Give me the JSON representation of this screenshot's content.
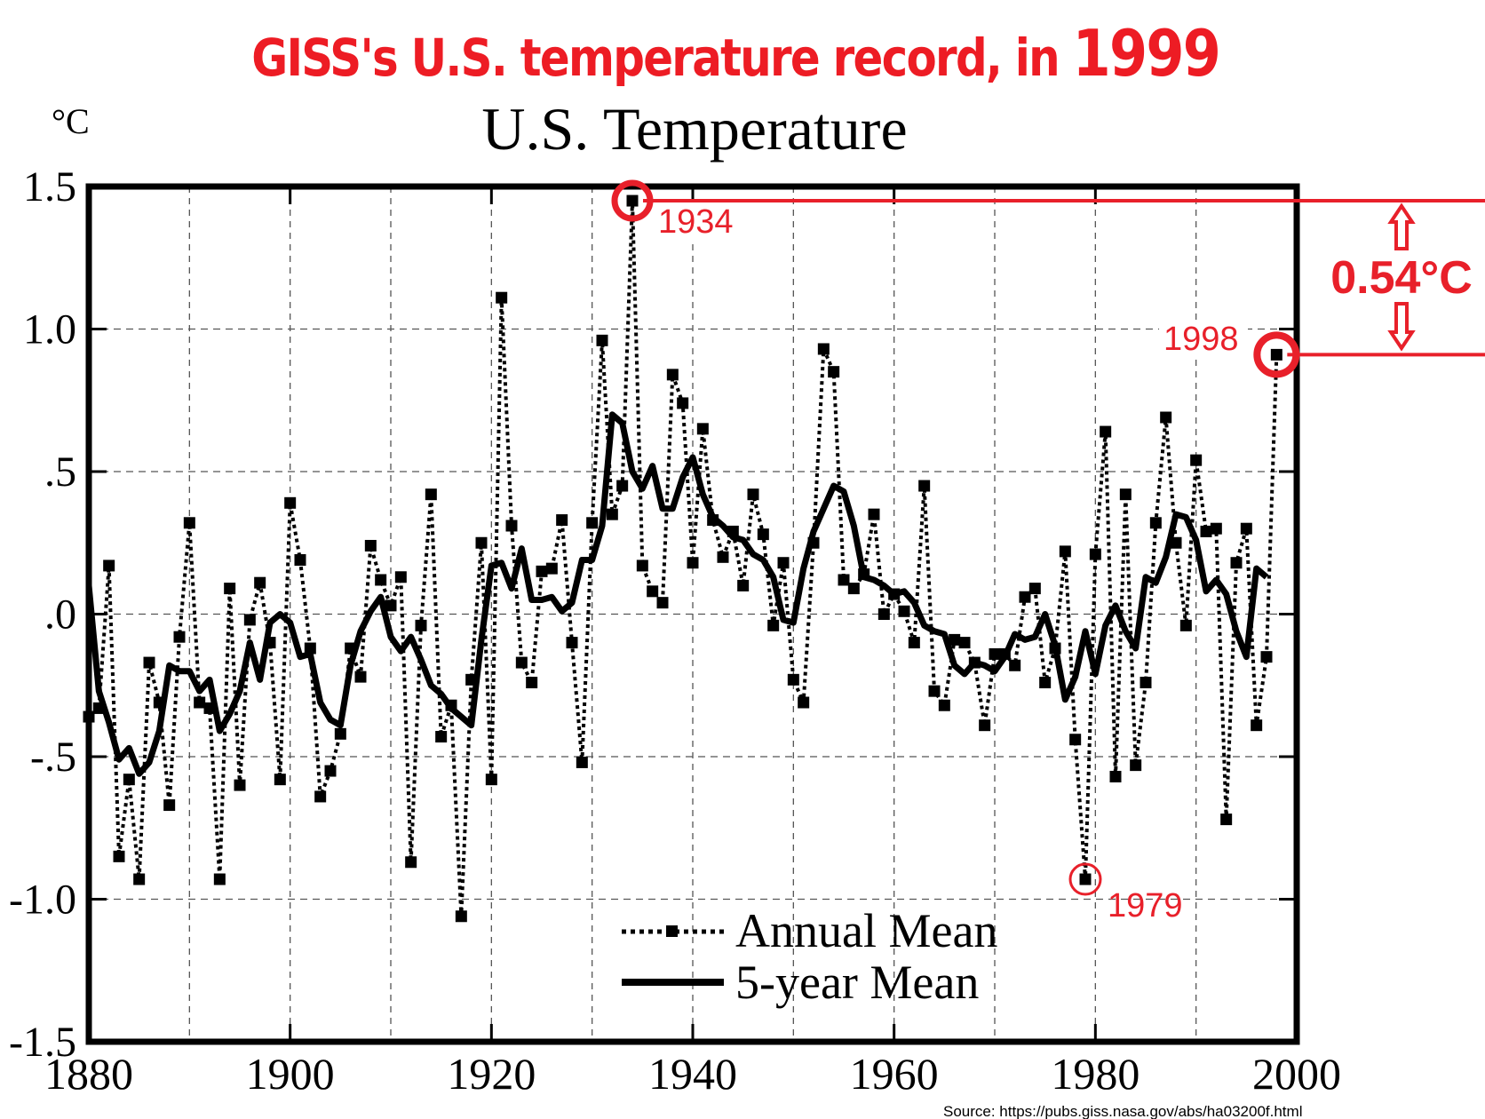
{
  "headline": {
    "text": "GISS's U.S. temperature record, in ",
    "year": "1999"
  },
  "annotations": {
    "peak_label": "1934",
    "recent_label": "1998",
    "low_label": "1979",
    "difference_label": "0.54°C",
    "source": "Source: https://pubs.giss.nasa.gov/abs/ha03200f.html",
    "annotation_color": "#e8202a"
  },
  "chart_data": {
    "type": "line",
    "title": "U.S. Temperature",
    "ylabel": "°C",
    "xlabel": "",
    "xlim": [
      1880,
      2000
    ],
    "ylim": [
      -1.5,
      1.5
    ],
    "xticks": [
      1880,
      1900,
      1920,
      1940,
      1960,
      1980,
      2000
    ],
    "xtick_labels": [
      "1880",
      "1900",
      "1920",
      "1940",
      "1960",
      "1980",
      "2000"
    ],
    "yticks": [
      1.5,
      1.0,
      0.5,
      0.0,
      -0.5,
      -1.0,
      -1.5
    ],
    "ytick_labels": [
      "1.5",
      "1.0",
      ".5",
      ".0",
      "-.5",
      "-1.0",
      "-1.5"
    ],
    "grid": true,
    "legend_position": "bottom-center",
    "series": [
      {
        "name": "Annual Mean",
        "style": "dotted-with-square-markers",
        "x_start": 1880,
        "values": [
          -0.36,
          -0.33,
          0.17,
          -0.85,
          -0.58,
          -0.93,
          -0.17,
          -0.31,
          -0.67,
          -0.08,
          0.32,
          -0.31,
          -0.33,
          -0.93,
          0.09,
          -0.6,
          -0.02,
          0.11,
          -0.1,
          -0.58,
          0.39,
          0.19,
          -0.12,
          -0.64,
          -0.55,
          -0.42,
          -0.12,
          -0.22,
          0.24,
          0.12,
          0.03,
          0.13,
          -0.87,
          -0.04,
          0.42,
          -0.43,
          -0.32,
          -1.06,
          -0.23,
          0.25,
          -0.58,
          1.11,
          0.31,
          -0.17,
          -0.24,
          0.15,
          0.16,
          0.33,
          -0.1,
          -0.52,
          0.32,
          0.96,
          0.35,
          0.45,
          1.45,
          0.17,
          0.08,
          0.04,
          0.84,
          0.74,
          0.18,
          0.65,
          0.33,
          0.2,
          0.29,
          0.1,
          0.42,
          0.28,
          -0.04,
          0.18,
          -0.23,
          -0.31,
          0.25,
          0.93,
          0.85,
          0.12,
          0.09,
          0.14,
          0.35,
          0.0,
          0.07,
          0.01,
          -0.1,
          0.45,
          -0.27,
          -0.32,
          -0.09,
          -0.1,
          -0.17,
          -0.39,
          -0.14,
          -0.14,
          -0.18,
          0.06,
          0.09,
          -0.24,
          -0.12,
          0.22,
          -0.44,
          -0.93,
          0.21,
          0.64,
          -0.57,
          0.42,
          -0.53,
          -0.24,
          0.32,
          0.69,
          0.25,
          -0.04,
          0.54,
          0.29,
          0.3,
          -0.72,
          0.18,
          0.3,
          -0.39,
          -0.15,
          0.91
        ]
      },
      {
        "name": "5-year Mean",
        "style": "solid-thick",
        "x_start": 1880,
        "values": [
          0.1,
          -0.27,
          -0.38,
          -0.51,
          -0.47,
          -0.56,
          -0.52,
          -0.41,
          -0.18,
          -0.2,
          -0.2,
          -0.27,
          -0.23,
          -0.41,
          -0.35,
          -0.27,
          -0.1,
          -0.23,
          -0.03,
          0.0,
          -0.03,
          -0.15,
          -0.14,
          -0.31,
          -0.37,
          -0.39,
          -0.18,
          -0.06,
          0.01,
          0.06,
          -0.08,
          -0.13,
          -0.08,
          -0.16,
          -0.25,
          -0.28,
          -0.33,
          -0.36,
          -0.39,
          -0.09,
          0.17,
          0.18,
          0.09,
          0.23,
          0.05,
          0.05,
          0.06,
          0.01,
          0.04,
          0.19,
          0.19,
          0.31,
          0.7,
          0.67,
          0.5,
          0.44,
          0.52,
          0.37,
          0.37,
          0.48,
          0.55,
          0.42,
          0.34,
          0.31,
          0.27,
          0.26,
          0.21,
          0.19,
          0.13,
          -0.02,
          -0.03,
          0.16,
          0.29,
          0.37,
          0.45,
          0.43,
          0.31,
          0.13,
          0.12,
          0.1,
          0.07,
          0.08,
          0.04,
          -0.04,
          -0.06,
          -0.07,
          -0.18,
          -0.21,
          -0.17,
          -0.18,
          -0.2,
          -0.15,
          -0.07,
          -0.09,
          -0.08,
          0.0,
          -0.11,
          -0.3,
          -0.22,
          -0.06,
          -0.21,
          -0.04,
          0.03,
          -0.06,
          -0.12,
          0.13,
          0.11,
          0.2,
          0.35,
          0.34,
          0.26,
          0.08,
          0.12,
          0.07,
          -0.06,
          -0.15,
          0.16,
          0.13
        ]
      }
    ],
    "highlighted_points": [
      {
        "year": 1934,
        "value": 1.45,
        "label": "1934"
      },
      {
        "year": 1998,
        "value": 0.91,
        "label": "1998"
      },
      {
        "year": 1979,
        "value": -0.93,
        "label": "1979"
      }
    ],
    "difference_annotation": {
      "from_year": 1934,
      "to_year": 1998,
      "delta": 0.54,
      "unit": "°C"
    }
  }
}
